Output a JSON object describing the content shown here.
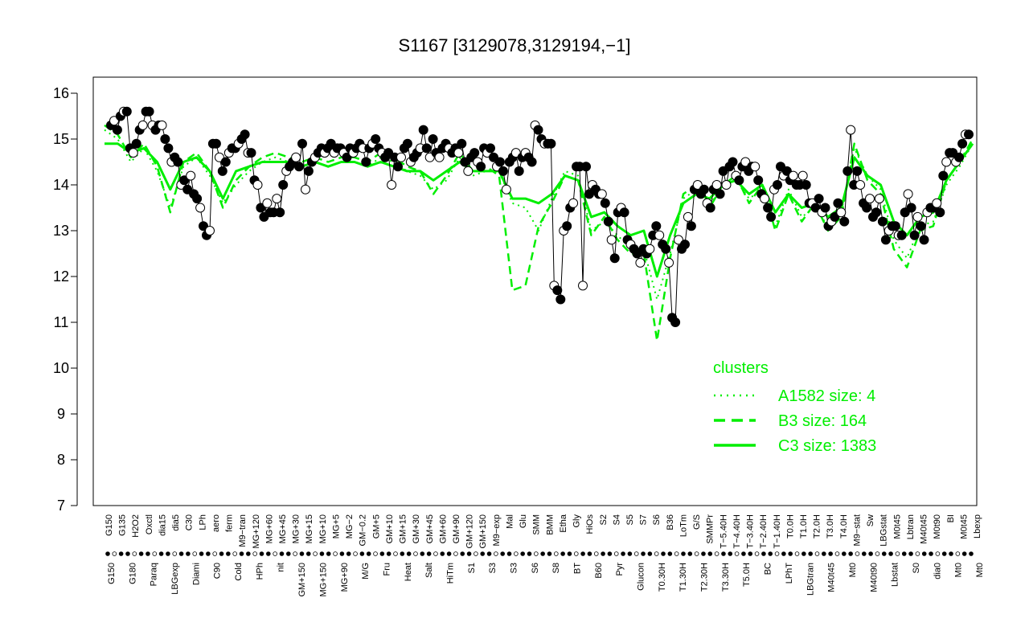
{
  "chart_data": {
    "type": "line",
    "title": "S1167 [3129078,3129194,−1]",
    "xlabel": "",
    "ylabel": "",
    "ylim": [
      7,
      16
    ],
    "yticks": [
      7,
      8,
      9,
      10,
      11,
      12,
      13,
      14,
      15,
      16
    ],
    "grid": false,
    "x_tick_labels_top": [
      "G150",
      "G135",
      "H2O2",
      "Oxctl",
      "dia15",
      "dia5",
      "C30",
      "LPh",
      "aero",
      "ferm",
      "M9−tran",
      "MG+120",
      "MG+60",
      "MG+45",
      "MG+30",
      "MG+15",
      "MG+10",
      "MG+5",
      "MG−2",
      "GM−0.2",
      "GM+5",
      "GM+10",
      "GM+15",
      "GM+30",
      "GM+45",
      "GM+60",
      "GM+90",
      "GM+120",
      "GM+150",
      "M9−exp",
      "Mal",
      "Glu",
      "SMM",
      "BMM",
      "Etha",
      "Gly",
      "HiOs",
      "S2",
      "S4",
      "S5",
      "S7",
      "S6",
      "B36",
      "LoTm",
      "G/S",
      "SMMPr",
      "T−5.40H",
      "T−4.40H",
      "T−3.40H",
      "T−2.40H",
      "T−1.40H",
      "T0.0H",
      "T1.0H",
      "T2.0H",
      "T3.0H",
      "T4.0H",
      "M9−stat",
      "Sw",
      "LBGstat",
      "M0t45",
      "Lbtran",
      "M40t45",
      "M0t90",
      "BI",
      "M0t45",
      "Lbexp"
    ],
    "x_tick_labels_bottom": [
      "G150",
      "G180",
      "Paraq",
      "LBGexp",
      "Diami",
      "C90",
      "Cold",
      "HPh",
      "nit",
      "GM+150",
      "MG+150",
      "MG+90",
      "M/G",
      "Fru",
      "Heat",
      "Salt",
      "HiTm",
      "S1",
      "S3",
      "S3",
      "S6",
      "S8",
      "BT",
      "B60",
      "Pyr",
      "Glucon",
      "T0.30H",
      "T1.30H",
      "T2.30H",
      "T3.30H",
      "T5.0H",
      "BC",
      "LPhT",
      "LBGtran",
      "M40t45",
      "Mt0",
      "M40t90",
      "Lbstat",
      "S0",
      "dia0",
      "Mt0",
      "Mt0"
    ],
    "series": [
      {
        "name": "A1582 size: 4",
        "style": "dotted",
        "values": [
          15.2,
          15.0,
          14.5,
          14.8,
          14.3,
          13.5,
          14.4,
          14.6,
          14.2,
          13.6,
          14.0,
          14.3,
          14.5,
          14.6,
          14.5,
          14.4,
          14.5,
          14.4,
          14.5,
          14.5,
          14.4,
          14.6,
          14.5,
          14.3,
          14.2,
          13.9,
          14.1,
          14.6,
          14.2,
          14.3,
          14.3,
          13.6,
          13.5,
          13.0,
          13.7,
          14.3,
          14.2,
          13.0,
          13.2,
          12.9,
          12.6,
          12.6,
          11.5,
          12.5,
          13.7,
          13.9,
          13.6,
          13.9,
          14.1,
          13.7,
          13.9,
          13.1,
          13.9,
          13.3,
          13.5,
          13.1,
          13.4,
          14.8,
          14.2,
          13.9,
          12.8,
          12.4,
          13.1,
          13.2,
          14.0,
          14.4,
          14.9
        ]
      },
      {
        "name": "B3 size: 164",
        "style": "dashed",
        "values": [
          15.3,
          15.1,
          14.6,
          14.9,
          14.4,
          13.4,
          14.5,
          14.7,
          14.3,
          13.5,
          14.1,
          14.4,
          14.6,
          14.7,
          14.6,
          14.5,
          14.6,
          14.5,
          14.6,
          14.6,
          14.5,
          14.7,
          14.6,
          14.4,
          14.3,
          13.8,
          14.2,
          14.7,
          14.3,
          14.4,
          14.2,
          11.7,
          11.8,
          13.1,
          13.6,
          14.2,
          14.1,
          12.9,
          13.3,
          12.8,
          12.5,
          12.5,
          10.6,
          12.4,
          13.8,
          14.0,
          13.5,
          14.0,
          14.2,
          13.6,
          14.0,
          13.0,
          13.8,
          13.2,
          13.6,
          13.0,
          13.3,
          14.9,
          14.1,
          13.8,
          12.6,
          12.2,
          13.0,
          13.1,
          14.1,
          14.5,
          15.0
        ]
      },
      {
        "name": "C3 size: 1383",
        "style": "solid",
        "values": [
          14.9,
          14.9,
          14.7,
          14.8,
          14.5,
          13.9,
          14.5,
          14.6,
          14.3,
          13.7,
          14.3,
          14.4,
          14.5,
          14.5,
          14.5,
          14.4,
          14.5,
          14.4,
          14.5,
          14.5,
          14.4,
          14.5,
          14.4,
          14.3,
          14.3,
          14.1,
          14.3,
          14.5,
          14.3,
          14.3,
          14.3,
          13.7,
          13.7,
          13.6,
          13.8,
          14.2,
          14.1,
          13.3,
          13.4,
          13.1,
          12.9,
          13.0,
          12.0,
          12.9,
          13.6,
          13.8,
          13.7,
          14.0,
          14.1,
          13.8,
          14.0,
          13.4,
          13.8,
          13.5,
          13.6,
          13.3,
          13.5,
          14.6,
          14.2,
          14.0,
          13.2,
          12.9,
          13.3,
          13.4,
          14.1,
          14.5,
          14.9
        ]
      }
    ],
    "points": [
      15.3,
      15.4,
      15.2,
      15.5,
      15.6,
      15.6,
      14.8,
      14.7,
      14.9,
      15.2,
      15.3,
      15.6,
      15.6,
      15.3,
      15.2,
      15.3,
      15.3,
      15.0,
      14.8,
      14.5,
      14.6,
      14.5,
      14.0,
      14.1,
      13.9,
      14.2,
      13.8,
      13.7,
      13.5,
      13.1,
      12.9,
      13.0,
      14.9,
      14.9,
      14.6,
      14.3,
      14.5,
      14.7,
      14.8,
      14.8,
      14.9,
      15.0,
      15.1,
      14.7,
      14.7,
      14.1,
      14.0,
      13.5,
      13.3,
      13.6,
      13.4,
      13.4,
      13.7,
      13.4,
      14.0,
      14.3,
      14.4,
      14.5,
      14.6,
      14.4,
      14.9,
      13.9,
      14.3,
      14.5,
      14.6,
      14.7,
      14.8,
      14.7,
      14.8,
      14.9,
      14.7,
      14.8,
      14.8,
      14.7,
      14.6,
      14.8,
      14.7,
      14.8,
      14.9,
      14.8,
      14.5,
      14.8,
      14.9,
      15.0,
      14.8,
      14.7,
      14.6,
      14.7,
      14.0,
      14.6,
      14.4,
      14.6,
      14.8,
      14.9,
      14.5,
      14.6,
      14.7,
      14.8,
      15.2,
      14.8,
      14.6,
      15.0,
      14.7,
      14.6,
      14.8,
      14.9,
      14.8,
      14.7,
      14.8,
      14.7,
      14.9,
      14.5,
      14.3,
      14.6,
      14.7,
      14.5,
      14.4,
      14.8,
      14.7,
      14.8,
      14.6,
      14.4,
      14.5,
      14.3,
      13.9,
      14.5,
      14.6,
      14.7,
      14.3,
      14.6,
      14.7,
      14.6,
      14.5,
      15.3,
      15.2,
      15.0,
      14.9,
      14.9,
      14.9,
      11.8,
      11.7,
      11.5,
      13.0,
      13.1,
      13.5,
      13.6,
      14.4,
      14.4,
      11.8,
      14.4,
      13.8,
      14.0,
      13.9,
      13.8,
      13.8,
      13.6,
      13.2,
      12.8,
      12.4,
      13.4,
      13.5,
      13.4,
      12.8,
      12.7,
      12.6,
      12.5,
      12.3,
      12.6,
      12.5,
      12.6,
      12.9,
      13.1,
      12.9,
      12.7,
      12.6,
      12.3,
      11.1,
      11.0,
      12.8,
      12.6,
      12.7,
      13.3,
      13.1,
      13.9,
      14.0,
      13.8,
      13.9,
      13.6,
      13.5,
      13.9,
      14.0,
      13.8,
      14.3,
      14.0,
      14.4,
      14.5,
      14.2,
      14.1,
      14.4,
      14.5,
      14.3,
      14.4,
      14.4,
      14.1,
      13.8,
      13.7,
      13.5,
      13.3,
      13.9,
      14.0,
      14.4,
      14.2,
      14.3,
      14.1,
      14.2,
      14.0,
      14.0,
      14.2,
      14.0,
      13.6,
      13.6,
      13.5,
      13.7,
      13.4,
      13.5,
      13.1,
      13.2,
      13.3,
      13.6,
      13.4,
      13.2,
      14.3,
      15.2,
      14.0,
      14.3,
      14.0,
      13.6,
      13.5,
      13.7,
      13.3,
      13.4,
      13.7,
      13.2,
      12.8,
      13.0,
      13.1,
      13.1,
      12.9,
      12.9,
      13.4,
      13.8,
      13.5,
      12.9,
      13.3,
      13.1,
      12.8,
      13.4,
      13.5,
      13.5,
      13.6,
      13.4,
      14.2,
      14.5,
      14.7,
      14.7,
      14.5,
      14.6,
      14.9,
      15.1,
      15.1
    ]
  },
  "legend": {
    "title": "clusters"
  },
  "colors": {
    "cluster_line": "#00ee00",
    "dark_point": "#000000",
    "light_point": "#ffffff"
  }
}
